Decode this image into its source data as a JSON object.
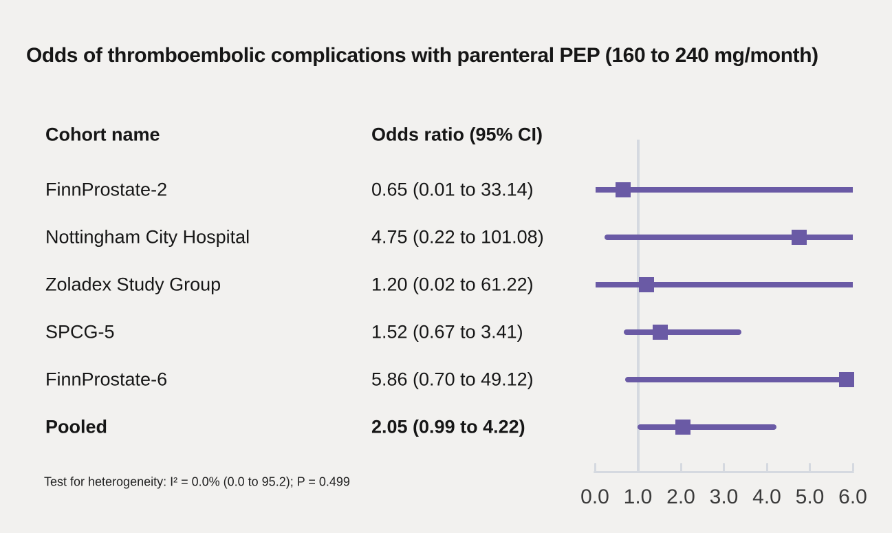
{
  "title": "Odds of thromboembolic complications with parenteral PEP (160 to 240 mg/month)",
  "columns": {
    "cohort": "Cohort name",
    "or": "Odds ratio (95% CI)"
  },
  "footer": "Test for heterogeneity: I² = 0.0% (0.0 to 95.2); P = 0.499",
  "colors": {
    "marker_purple": "#6a5aa5",
    "axis_gray": "#d5d9e0",
    "background": "#f2f1ef",
    "text": "#161616",
    "tick_label": "#3b3b3b"
  },
  "chart_data": {
    "type": "forest",
    "title": "Odds of thromboembolic complications with parenteral PEP (160 to 240 mg/month)",
    "xlabel": "",
    "ylabel": "",
    "xlim": [
      0,
      6
    ],
    "x_ticks": [
      "0.0",
      "1.0",
      "2.0",
      "3.0",
      "4.0",
      "5.0",
      "6.0"
    ],
    "reference_line": 1.0,
    "grid": false,
    "legend": "none",
    "rows": [
      {
        "cohort": "FinnProstate-2",
        "or": 0.65,
        "ci_low": 0.01,
        "ci_high": 33.14,
        "label": "0.65 (0.01 to 33.14)",
        "bold": false
      },
      {
        "cohort": "Nottingham City Hospital",
        "or": 4.75,
        "ci_low": 0.22,
        "ci_high": 101.08,
        "label": "4.75 (0.22 to 101.08)",
        "bold": false
      },
      {
        "cohort": "Zoladex Study Group",
        "or": 1.2,
        "ci_low": 0.02,
        "ci_high": 61.22,
        "label": "1.20 (0.02 to 61.22)",
        "bold": false
      },
      {
        "cohort": "SPCG-5",
        "or": 1.52,
        "ci_low": 0.67,
        "ci_high": 3.41,
        "label": "1.52 (0.67 to 3.41)",
        "bold": false
      },
      {
        "cohort": "FinnProstate-6",
        "or": 5.86,
        "ci_low": 0.7,
        "ci_high": 49.12,
        "label": "5.86 (0.70 to 49.12)",
        "bold": false
      },
      {
        "cohort": "Pooled",
        "or": 2.05,
        "ci_low": 0.99,
        "ci_high": 4.22,
        "label": "2.05 (0.99 to 4.22)",
        "bold": true
      }
    ]
  }
}
